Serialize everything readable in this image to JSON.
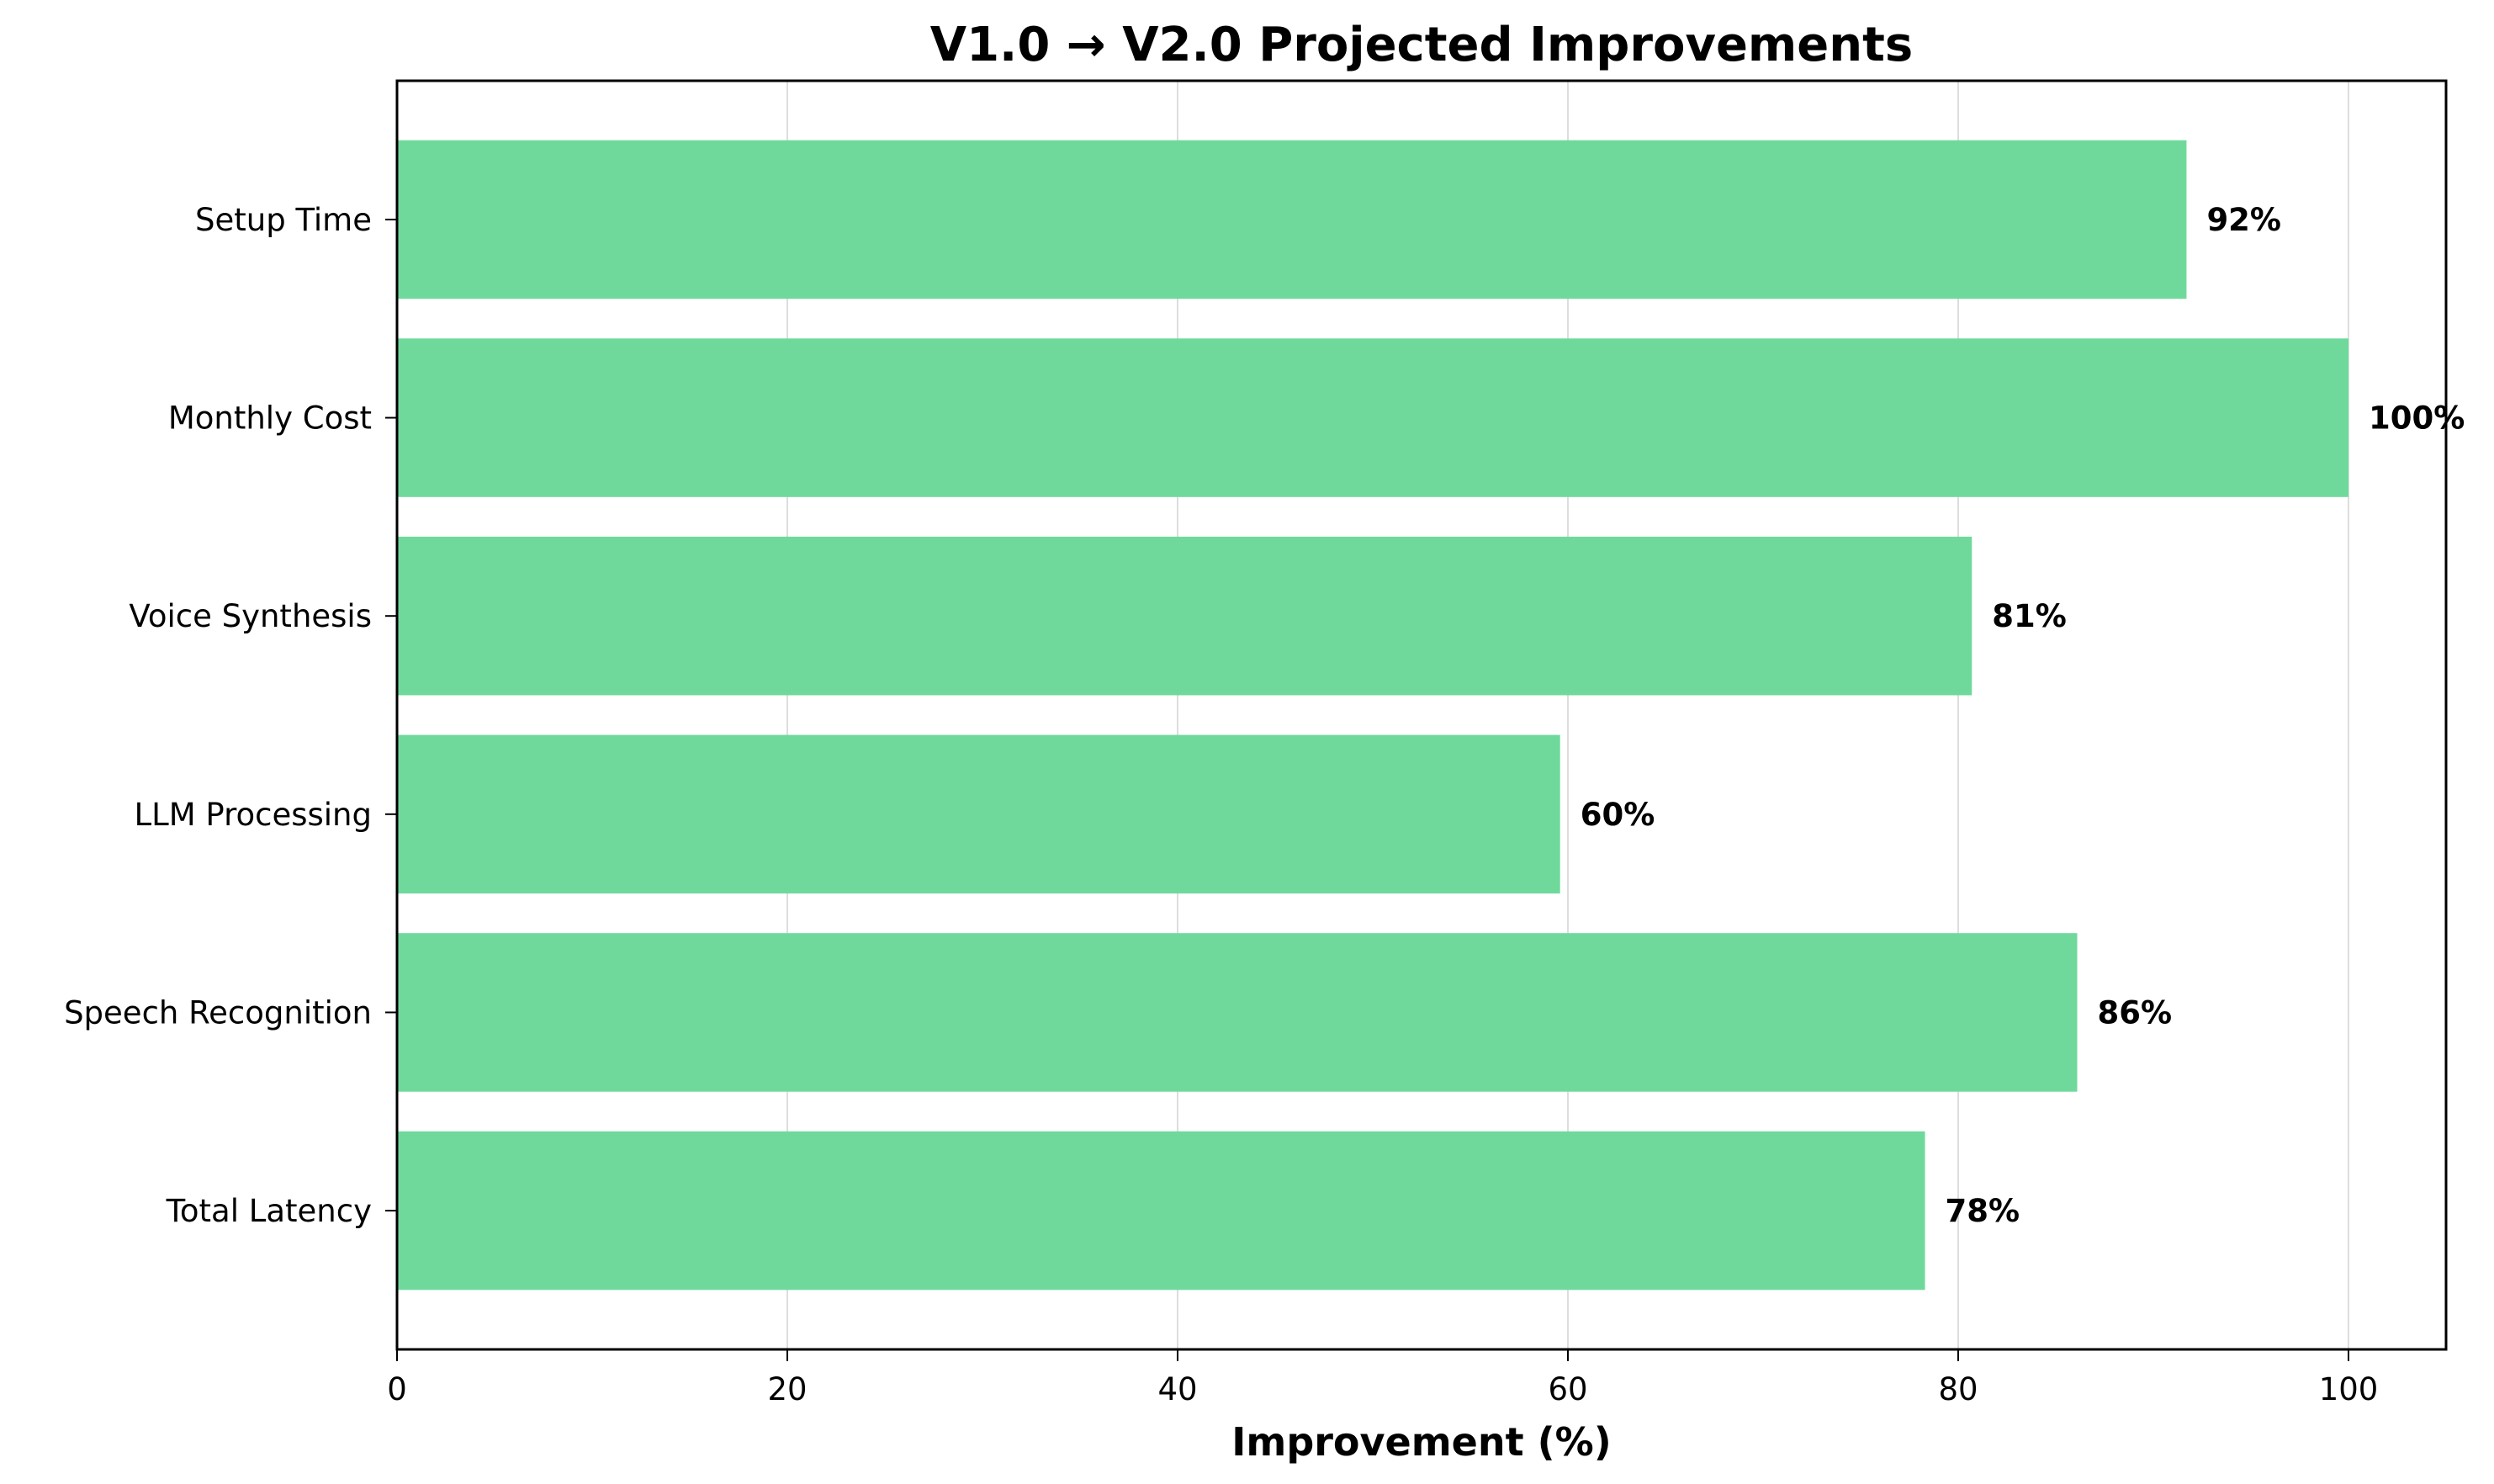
{
  "chart_data": {
    "type": "bar",
    "orientation": "horizontal",
    "title": "V1.0 → V2.0 Projected Improvements",
    "xlabel": "Improvement (%)",
    "ylabel": "",
    "xlim": [
      0,
      105
    ],
    "xticks": [
      0,
      20,
      40,
      60,
      80,
      100
    ],
    "xtick_labels": [
      "0",
      "20",
      "40",
      "60",
      "80",
      "100"
    ],
    "categories": [
      "Setup Time",
      "Monthly Cost",
      "Voice Synthesis",
      "LLM Processing",
      "Speech Recognition",
      "Total Latency"
    ],
    "values": [
      91.7,
      100,
      80.7,
      59.6,
      86.1,
      78.3
    ],
    "value_labels": [
      "92%",
      "100%",
      "81%",
      "60%",
      "86%",
      "78%"
    ],
    "bar_color": "#6fd99c",
    "grid": "vertical",
    "legend": "none"
  }
}
